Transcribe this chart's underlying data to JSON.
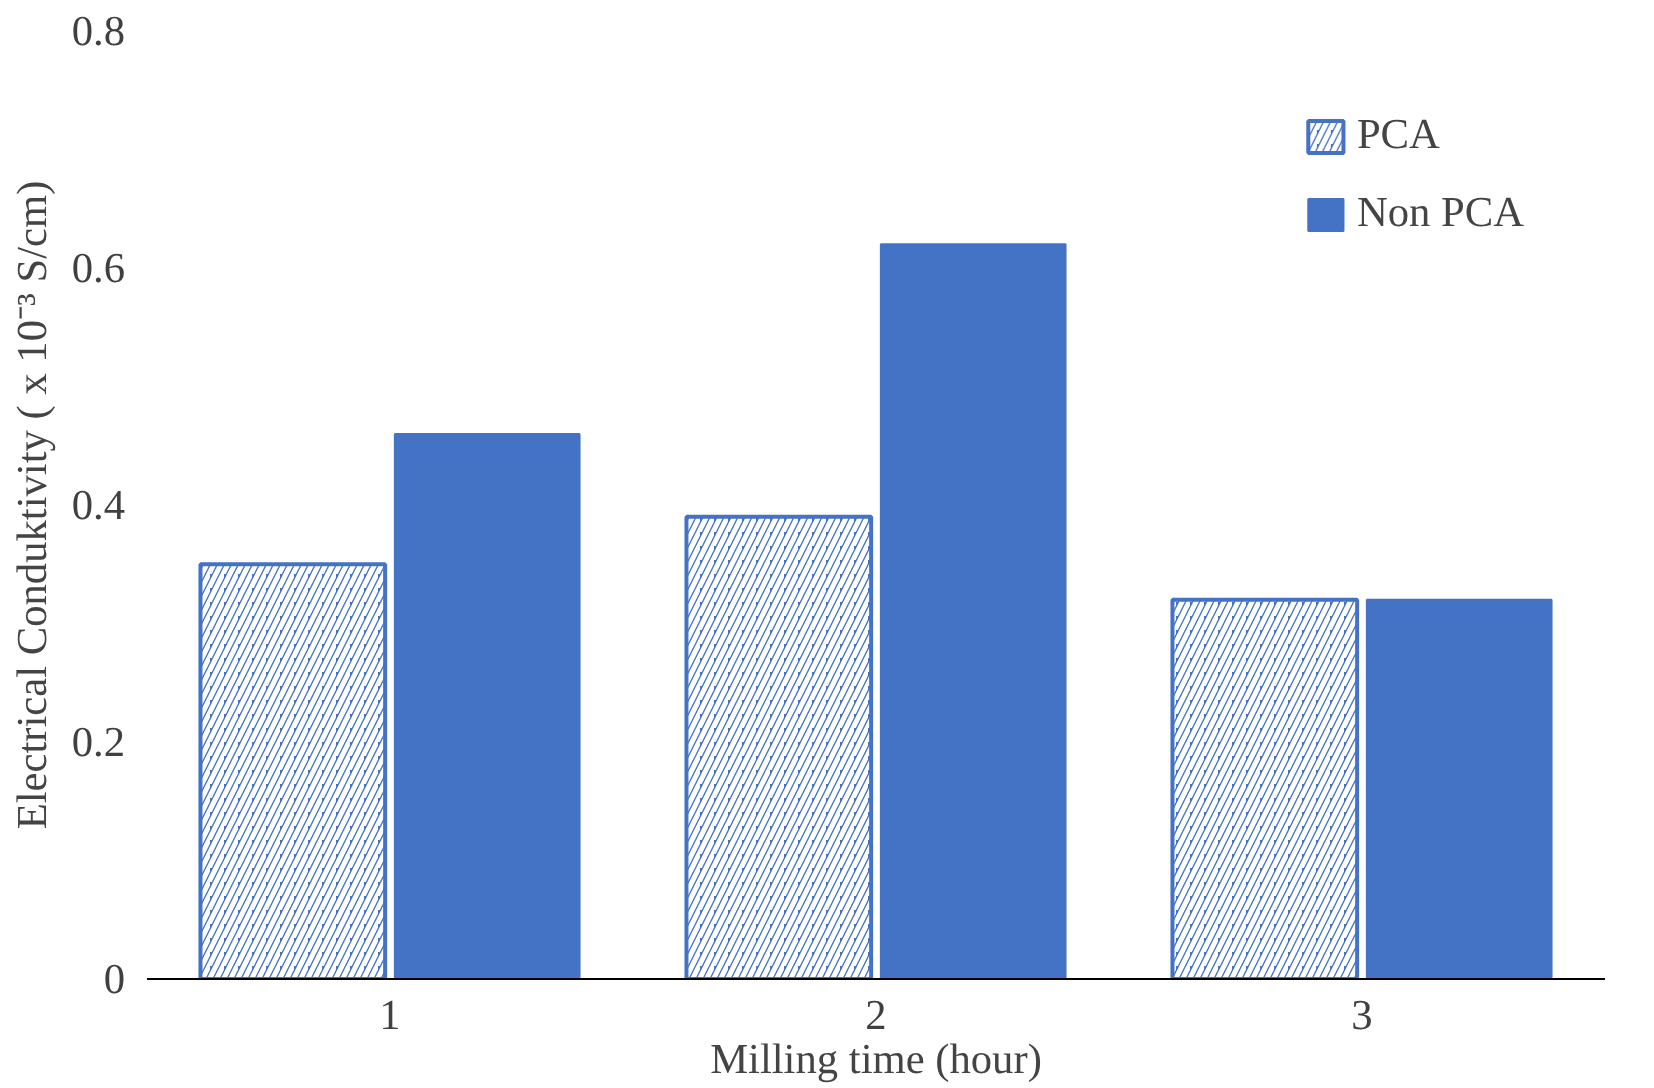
{
  "chart_data": {
    "type": "bar",
    "xlabel": "Milling time (hour)",
    "ylabel": "Electrical Conduktivity ( x 10⁻³ S/cm)",
    "categories": [
      "1",
      "2",
      "3"
    ],
    "series": [
      {
        "name": "PCA",
        "color": "#4472c4",
        "values": [
          0.35,
          0.39,
          0.32
        ]
      },
      {
        "name": "Non PCA",
        "color": "#4472c4",
        "values": [
          0.46,
          0.62,
          0.32
        ]
      }
    ],
    "ylim": [
      0,
      0.8
    ],
    "yticks": [
      {
        "value": 0,
        "label": "0"
      },
      0.2,
      0.4,
      0.6,
      0.8
    ],
    "grid": false,
    "legend": "top right"
  }
}
